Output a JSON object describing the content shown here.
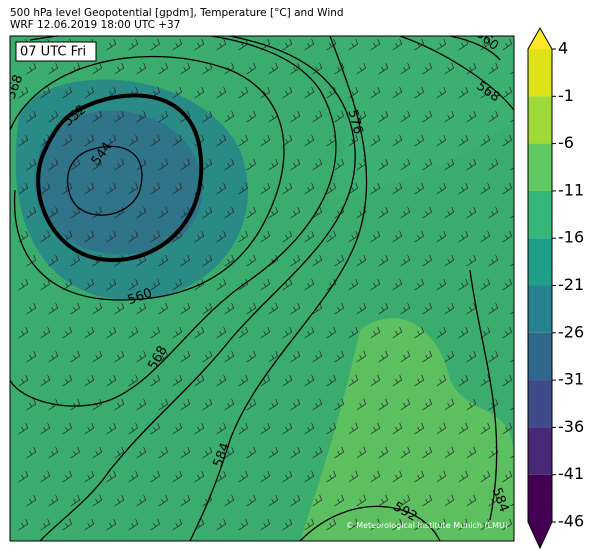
{
  "header": {
    "title": "500 hPa level Geopotential [gpdm], Temperature [°C] and Wind",
    "subtitle": "WRF 12.06.2019 18:00 UTC +37"
  },
  "map": {
    "time_label": "07 UTC Fri",
    "contour_labels": [
      "552",
      "544",
      "560",
      "568",
      "576",
      "568",
      "584",
      "592",
      "584",
      "568",
      "560"
    ],
    "credit": "© Meteorological Institute Munich (LMU)"
  },
  "colorbar": {
    "ticks": [
      4,
      -1,
      -6,
      -11,
      -16,
      -21,
      -26,
      -31,
      -36,
      -41,
      -46
    ],
    "colors": [
      "#dde318",
      "#a0da39",
      "#5ec962",
      "#35b779",
      "#1f9e89",
      "#26828e",
      "#31688e",
      "#3e4a89",
      "#482878",
      "#440154"
    ],
    "extend_high": "#fde725",
    "extend_low": "#440154"
  }
}
